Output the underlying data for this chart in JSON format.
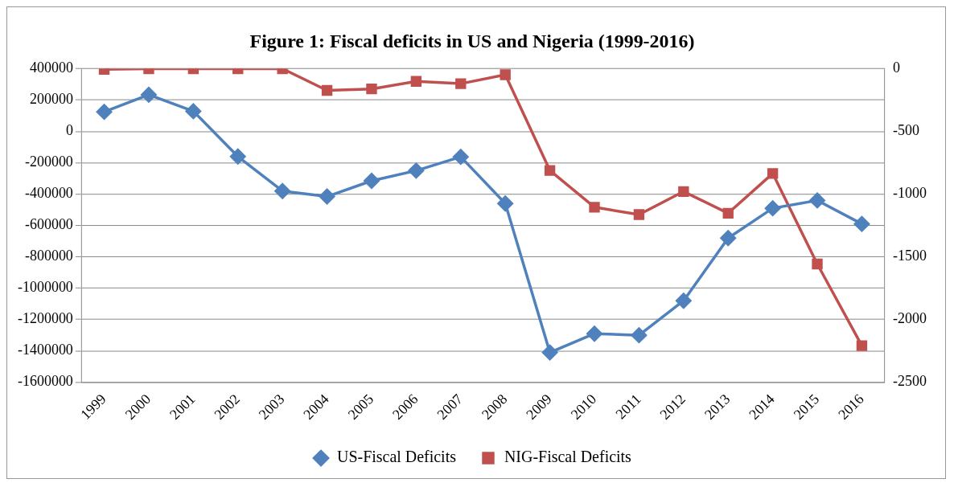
{
  "chart_data": {
    "type": "line",
    "title": "Figure 1: Fiscal deficits in US and Nigeria (1999-2016)",
    "categories": [
      "1999",
      "2000",
      "2001",
      "2002",
      "2003",
      "2004",
      "2005",
      "2006",
      "2007",
      "2008",
      "2009",
      "2010",
      "2011",
      "2012",
      "2013",
      "2014",
      "2015",
      "2016"
    ],
    "series": [
      {
        "name": "US-Fiscal Deficits",
        "color": "#4f81bd",
        "marker": "diamond",
        "values": [
          125000,
          234000,
          129000,
          -160000,
          -380000,
          -415000,
          -315000,
          -250000,
          -162000,
          -460000,
          -1410000,
          -1290000,
          -1300000,
          -1080000,
          -680000,
          -490000,
          -440000,
          -590000
        ]
      },
      {
        "name": "NIG-Fiscal Deficits",
        "color": "#c0504d",
        "marker": "square",
        "axis": "y2",
        "values": [
          -5,
          0,
          0,
          0,
          0,
          -173,
          -161,
          -101,
          -119,
          -48,
          -811,
          -1104,
          -1163,
          -979,
          -1152,
          -835,
          -1557,
          -2208
        ]
      }
    ],
    "ylim": [
      -1600000,
      400000
    ],
    "yticks": [
      -1600000,
      -1400000,
      -1200000,
      -1000000,
      -800000,
      -600000,
      -400000,
      -200000,
      0,
      200000,
      400000
    ],
    "y2lim": [
      -2500,
      0
    ],
    "y2ticks": [
      -2500,
      -2000,
      -1500,
      -1000,
      -500,
      0
    ],
    "grid": "y",
    "legend": "bottom"
  }
}
